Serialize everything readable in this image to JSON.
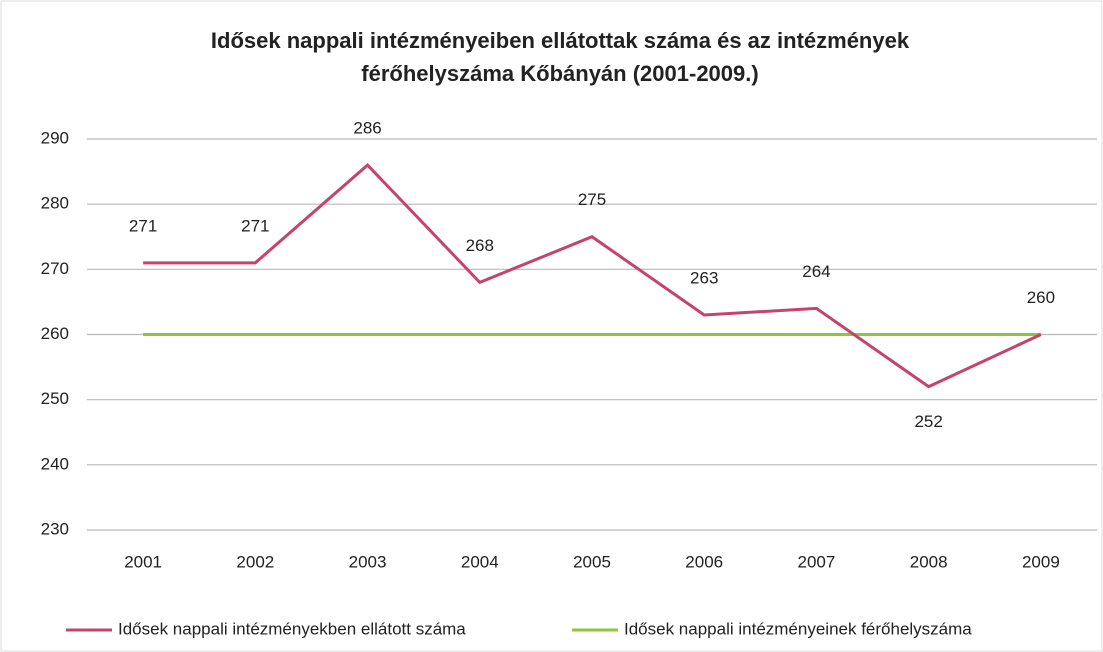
{
  "chart_data": {
    "type": "line",
    "title": [
      "Idősek nappali intézményeiben ellátottak száma és az intézmények",
      "férőhelyszáma Kőbányán (2001-2009.)"
    ],
    "categories": [
      "2001",
      "2002",
      "2003",
      "2004",
      "2005",
      "2006",
      "2007",
      "2008",
      "2009"
    ],
    "series": [
      {
        "name": "Idősek nappali intézményekben ellátott száma",
        "color": "#c4436f",
        "values": [
          271,
          271,
          286,
          268,
          275,
          263,
          264,
          252,
          260
        ],
        "labels": true
      },
      {
        "name": "Idősek nappali intézményeinek férőhelyszáma",
        "color": "#8dc63f",
        "values": [
          260,
          260,
          260,
          260,
          260,
          260,
          260,
          260,
          260
        ],
        "labels": false
      }
    ],
    "ylim": [
      230,
      290
    ],
    "yticks": [
      230,
      240,
      250,
      260,
      270,
      280,
      290
    ],
    "grid": true,
    "legend": "bottom"
  }
}
